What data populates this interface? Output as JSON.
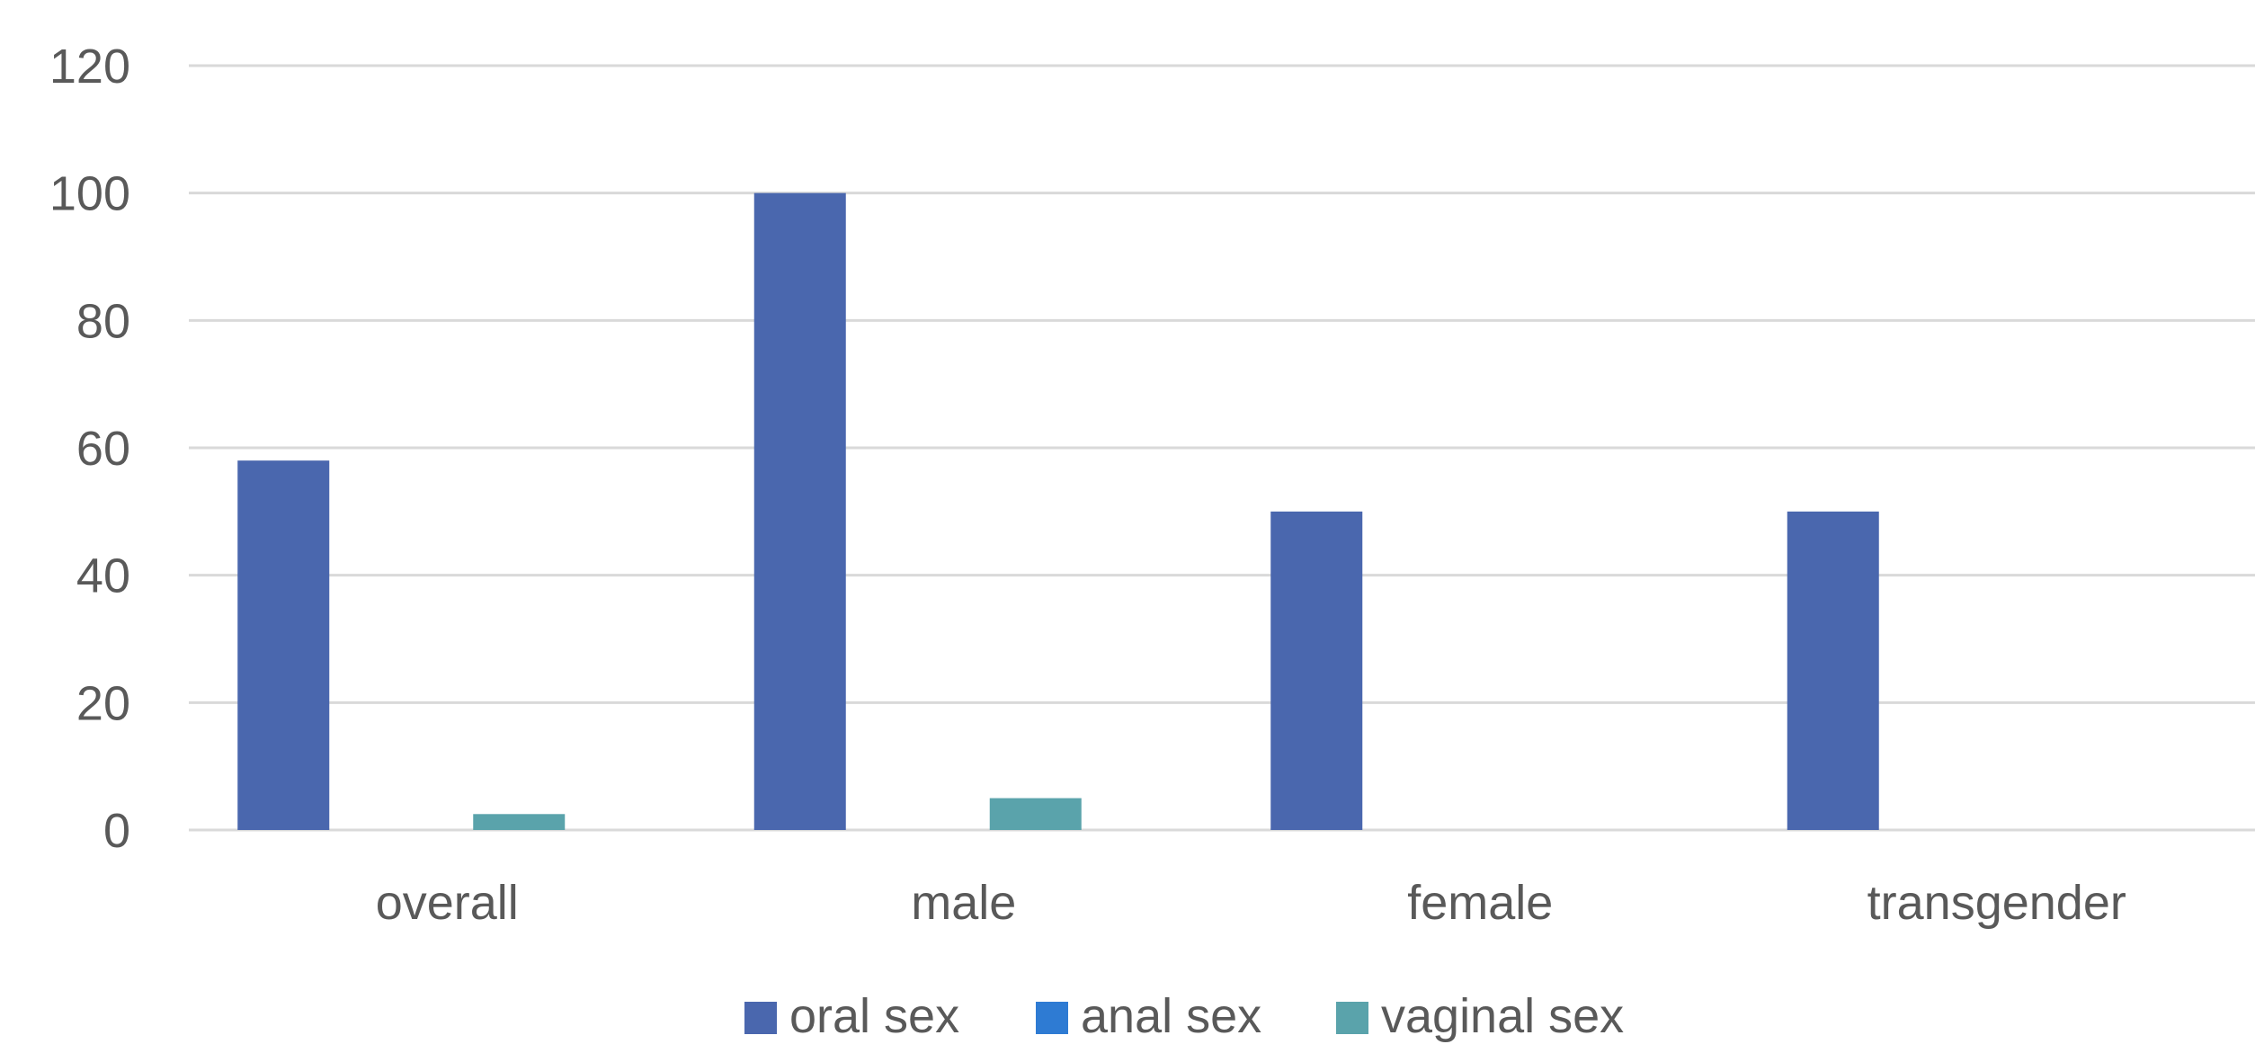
{
  "chart_data": {
    "type": "bar",
    "categories": [
      "overall",
      "male",
      "female",
      "transgender"
    ],
    "series": [
      {
        "name": "oral sex",
        "color": "#4a67ae",
        "values": [
          58,
          100,
          50,
          50
        ]
      },
      {
        "name": "anal sex",
        "color": "#2e7bd3",
        "values": [
          0,
          0,
          0,
          0
        ]
      },
      {
        "name": "vaginal sex",
        "color": "#5aa3ab",
        "values": [
          2.5,
          5,
          0,
          0
        ]
      }
    ],
    "ylim": [
      0,
      120
    ],
    "yticks": [
      "0",
      "20",
      "40",
      "60",
      "80",
      "100",
      "120"
    ],
    "grid": true,
    "legend_position": "bottom",
    "title": "",
    "xlabel": "",
    "ylabel": ""
  }
}
